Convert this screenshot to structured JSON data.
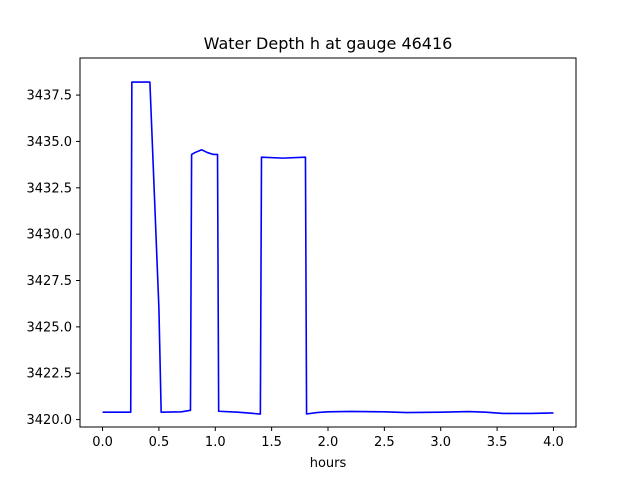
{
  "chart_data": {
    "type": "line",
    "title": "Water Depth h at gauge 46416",
    "xlabel": "hours",
    "ylabel": "",
    "xlim": [
      -0.2,
      4.2
    ],
    "ylim": [
      3419.6,
      3439.5
    ],
    "xticks": [
      0.0,
      0.5,
      1.0,
      1.5,
      2.0,
      2.5,
      3.0,
      3.5,
      4.0
    ],
    "xtick_labels": [
      "0.0",
      "0.5",
      "1.0",
      "1.5",
      "2.0",
      "2.5",
      "3.0",
      "3.5",
      "4.0"
    ],
    "yticks": [
      3420.0,
      3422.5,
      3425.0,
      3427.5,
      3430.0,
      3432.5,
      3435.0,
      3437.5
    ],
    "ytick_labels": [
      "3420.0",
      "3422.5",
      "3425.0",
      "3427.5",
      "3430.0",
      "3432.5",
      "3435.0",
      "3437.5"
    ],
    "grid": false,
    "series": [
      {
        "color": "#0000ff",
        "x": [
          0.0,
          0.25,
          0.26,
          0.42,
          0.5,
          0.52,
          0.7,
          0.78,
          0.79,
          0.82,
          0.88,
          0.93,
          0.98,
          1.02,
          1.03,
          1.2,
          1.3,
          1.4,
          1.41,
          1.6,
          1.8,
          1.81,
          1.9,
          2.0,
          2.2,
          2.5,
          2.7,
          3.0,
          3.25,
          3.4,
          3.55,
          3.8,
          4.0
        ],
        "y": [
          3420.4,
          3420.4,
          3438.2,
          3438.2,
          3426.0,
          3420.4,
          3420.42,
          3420.5,
          3434.3,
          3434.4,
          3434.55,
          3434.4,
          3434.3,
          3434.3,
          3420.45,
          3420.4,
          3420.35,
          3420.3,
          3434.15,
          3434.1,
          3434.15,
          3420.3,
          3420.38,
          3420.42,
          3420.44,
          3420.42,
          3420.38,
          3420.4,
          3420.43,
          3420.4,
          3420.33,
          3420.33,
          3420.36
        ]
      }
    ]
  }
}
